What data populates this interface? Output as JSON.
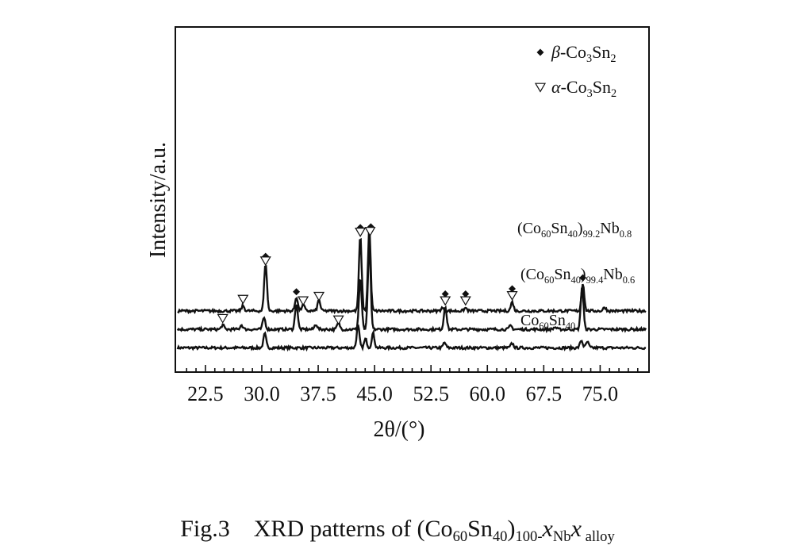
{
  "chart_data": {
    "type": "line",
    "xlabel": "2θ/(°)",
    "ylabel": "Intensity/a.u.",
    "xlim": [
      18.5,
      81.5
    ],
    "x_ticks": [
      "22.5",
      "30.0",
      "37.5",
      "45.0",
      "52.5",
      "60.0",
      "67.5",
      "75.0"
    ],
    "x_tick_values": [
      22.5,
      30.0,
      37.5,
      45.0,
      52.5,
      60.0,
      67.5,
      75.0
    ],
    "legend": [
      {
        "marker": "diamond",
        "label_parts": [
          "β",
          "-Co",
          "3",
          "Sn",
          "2"
        ]
      },
      {
        "marker": "triangle-down",
        "label_parts": [
          "α",
          "-Co",
          "3",
          "Sn",
          "2"
        ]
      }
    ],
    "series": [
      {
        "name_parts": [
          "Co",
          "60",
          "Sn",
          "40",
          "",
          ""
        ],
        "baseline": 0.3,
        "peaks": [
          [
            30.4,
            0.95
          ],
          [
            42.8,
            1.5
          ],
          [
            43.8,
            0.6
          ],
          [
            44.8,
            1.0
          ],
          [
            54.3,
            0.35
          ],
          [
            63.3,
            0.3
          ],
          [
            72.5,
            0.5
          ],
          [
            73.3,
            0.4
          ]
        ]
      },
      {
        "name_parts": [
          "(Co",
          "60",
          "Sn",
          "40",
          ")",
          "99.4",
          "Nb",
          "0.6"
        ],
        "baseline": 1.55,
        "peaks": [
          [
            24.8,
            0.3
          ],
          [
            27.3,
            0.3
          ],
          [
            30.3,
            0.8
          ],
          [
            34.6,
            1.75
          ],
          [
            37.2,
            0.35
          ],
          [
            40.2,
            0.45
          ],
          [
            43.1,
            3.5
          ],
          [
            44.3,
            5.8
          ],
          [
            54.4,
            1.6
          ],
          [
            63.1,
            0.25
          ],
          [
            69.0,
            0.15
          ],
          [
            72.6,
            2.9
          ]
        ]
      },
      {
        "name_parts": [
          "(Co",
          "60",
          "Sn",
          "40",
          ")",
          "99.2",
          "Nb",
          "0.8"
        ],
        "baseline": 2.8,
        "peaks": [
          [
            27.5,
            0.35
          ],
          [
            30.5,
            3.25
          ],
          [
            34.6,
            0.95
          ],
          [
            35.5,
            0.45
          ],
          [
            37.6,
            0.75
          ],
          [
            43.1,
            5.05
          ],
          [
            44.3,
            5.5
          ],
          [
            54.0,
            0.2
          ],
          [
            57.1,
            0.2
          ],
          [
            63.3,
            0.6
          ],
          [
            72.7,
            1.9
          ],
          [
            75.6,
            0.25
          ]
        ]
      }
    ],
    "annotations": [
      {
        "marker": "diamond",
        "x": 30.5,
        "y": 6.5
      },
      {
        "marker": "triangle-down",
        "x": 30.5,
        "y": 6.2
      },
      {
        "marker": "diamond",
        "x": 34.6,
        "y": 4.1
      },
      {
        "marker": "triangle-down",
        "x": 35.5,
        "y": 3.5
      },
      {
        "marker": "triangle-down",
        "x": 37.6,
        "y": 3.8
      },
      {
        "marker": "triangle-down",
        "x": 27.5,
        "y": 3.6
      },
      {
        "marker": "triangle-down",
        "x": 24.8,
        "y": 2.3
      },
      {
        "marker": "triangle-down",
        "x": 40.2,
        "y": 2.2
      },
      {
        "marker": "diamond",
        "x": 43.1,
        "y": 8.45
      },
      {
        "marker": "triangle-down",
        "x": 43.1,
        "y": 8.15
      },
      {
        "marker": "diamond",
        "x": 44.5,
        "y": 8.5
      },
      {
        "marker": "triangle-down",
        "x": 44.4,
        "y": 8.2
      },
      {
        "marker": "diamond",
        "x": 54.4,
        "y": 3.95
      },
      {
        "marker": "triangle-down",
        "x": 54.4,
        "y": 3.5
      },
      {
        "marker": "diamond",
        "x": 57.1,
        "y": 3.95
      },
      {
        "marker": "triangle-down",
        "x": 57.1,
        "y": 3.5
      },
      {
        "marker": "diamond",
        "x": 63.3,
        "y": 4.3
      },
      {
        "marker": "triangle-down",
        "x": 63.3,
        "y": 3.85
      },
      {
        "marker": "diamond",
        "x": 72.7,
        "y": 5.05
      }
    ]
  },
  "caption": {
    "prefix": "Fig.3",
    "title_parts": [
      "XRD patterns of (Co",
      "60",
      "Sn",
      "40",
      ")",
      "100-",
      "x",
      "Nb",
      "x",
      " alloy"
    ]
  }
}
